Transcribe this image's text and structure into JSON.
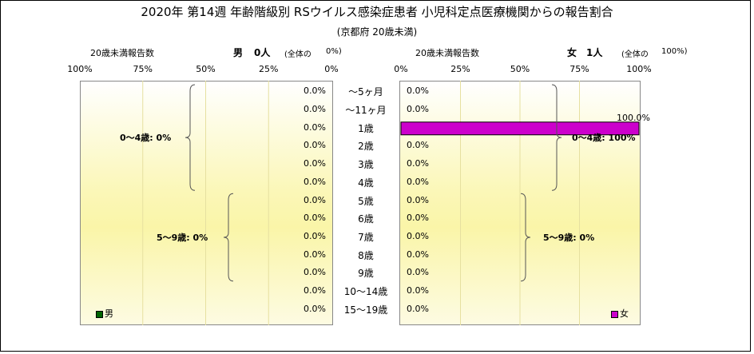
{
  "chart_data": {
    "type": "bar",
    "title": "2020年 第14週 年齢階級別 RSウイルス感染症患者 小児科定点医療機関からの報告割合",
    "subtitle": "(京都府 20歳未満)",
    "categories": [
      "～5ヶ月",
      "～11ヶ月",
      "1歳",
      "2歳",
      "3歳",
      "4歳",
      "5歳",
      "6歳",
      "7歳",
      "8歳",
      "9歳",
      "10～14歳",
      "15～19歳"
    ],
    "axis_caption": "20歳未満報告数",
    "xlim": [
      0,
      100
    ],
    "ticks_left": [
      "100%",
      "75%",
      "50%",
      "25%",
      "0%"
    ],
    "ticks_right": [
      "0%",
      "25%",
      "50%",
      "75%",
      "100%"
    ],
    "series": [
      {
        "name": "男",
        "heading": "男",
        "count": "0人",
        "total_text": "(全体の",
        "total_pct": "0%)",
        "color": "#006400",
        "values": [
          0,
          0,
          0,
          0,
          0,
          0,
          0,
          0,
          0,
          0,
          0,
          0,
          0
        ],
        "value_labels": [
          "0.0%",
          "0.0%",
          "0.0%",
          "0.0%",
          "0.0%",
          "0.0%",
          "0.0%",
          "0.0%",
          "0.0%",
          "0.0%",
          "0.0%",
          "0.0%",
          "0.0%"
        ],
        "groups": [
          {
            "label": "0～4歳: 0%",
            "from": 0,
            "to": 5
          },
          {
            "label": "5～9歳: 0%",
            "from": 6,
            "to": 10
          }
        ]
      },
      {
        "name": "女",
        "heading": "女",
        "count": "1人",
        "total_text": "(全体の",
        "total_pct": "100%)",
        "color": "#cc00cc",
        "values": [
          0,
          0,
          100,
          0,
          0,
          0,
          0,
          0,
          0,
          0,
          0,
          0,
          0
        ],
        "value_labels": [
          "0.0%",
          "0.0%",
          "100.0%",
          "0.0%",
          "0.0%",
          "0.0%",
          "0.0%",
          "0.0%",
          "0.0%",
          "0.0%",
          "0.0%",
          "0.0%",
          "0.0%"
        ],
        "groups": [
          {
            "label": "0～4歳: 100%",
            "from": 0,
            "to": 5
          },
          {
            "label": "5～9歳: 0%",
            "from": 6,
            "to": 10
          }
        ]
      }
    ],
    "grid": true,
    "legend": "bottom-corners"
  }
}
